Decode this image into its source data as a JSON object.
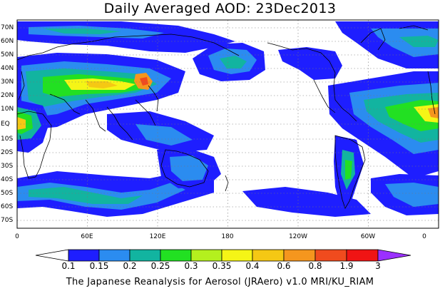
{
  "title": "Daily Averaged AOD: 23Dec2013",
  "map": {
    "lat_labels": [
      "70N",
      "60N",
      "50N",
      "40N",
      "30N",
      "20N",
      "10N",
      "EQ",
      "10S",
      "20S",
      "30S",
      "40S",
      "50S",
      "60S",
      "70S"
    ],
    "lon_labels": [
      "0",
      "60E",
      "120E",
      "180",
      "120W",
      "60W",
      "0"
    ]
  },
  "colorbar": {
    "levels": [
      "0.1",
      "0.15",
      "0.2",
      "0.25",
      "0.3",
      "0.35",
      "0.4",
      "0.6",
      "0.8",
      "1.9",
      "3"
    ],
    "colors": [
      "#ffffff",
      "#1e1eff",
      "#2b8cf0",
      "#12b4a0",
      "#22e022",
      "#b4f01e",
      "#f5f516",
      "#f5c814",
      "#f5961e",
      "#f04b1e",
      "#f01414",
      "#9b30ff"
    ]
  },
  "credit": "The Japanese Reanalysis for Aerosol (JRAero) v1.0 MRI/KU_RIAM"
}
